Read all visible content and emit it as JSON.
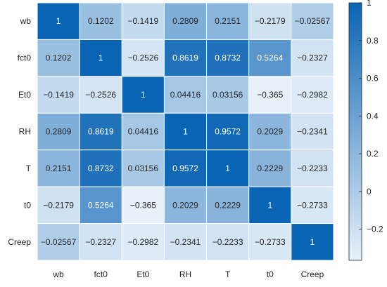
{
  "chart_data": {
    "type": "heatmap",
    "title": "",
    "xlabel": "",
    "ylabel": "",
    "x_labels": [
      "wb",
      "fct0",
      "Et0",
      "RH",
      "T",
      "t0",
      "Creep"
    ],
    "y_labels": [
      "wb",
      "fct0",
      "Et0",
      "RH",
      "T",
      "t0",
      "Creep"
    ],
    "values": [
      [
        1,
        0.1202,
        -0.1419,
        0.2809,
        0.2151,
        -0.2179,
        -0.02567
      ],
      [
        0.1202,
        1,
        -0.2526,
        0.8619,
        0.8732,
        0.5264,
        -0.2327
      ],
      [
        -0.1419,
        -0.2526,
        1,
        0.04416,
        0.03156,
        -0.365,
        -0.2982
      ],
      [
        0.2809,
        0.8619,
        0.04416,
        1,
        0.9572,
        0.2029,
        -0.2341
      ],
      [
        0.2151,
        0.8732,
        0.03156,
        0.9572,
        1,
        0.2229,
        -0.2233
      ],
      [
        -0.2179,
        0.5264,
        -0.365,
        0.2029,
        0.2229,
        1,
        -0.2733
      ],
      [
        -0.02567,
        -0.2327,
        -0.2982,
        -0.2341,
        -0.2233,
        -0.2733,
        1
      ]
    ],
    "cell_labels": [
      [
        "1",
        "0.1202",
        "−0.1419",
        "0.2809",
        "0.2151",
        "−0.2179",
        "−0.02567"
      ],
      [
        "0.1202",
        "1",
        "−0.2526",
        "0.8619",
        "0.8732",
        "0.5264",
        "−0.2327"
      ],
      [
        "−0.1419",
        "−0.2526",
        "1",
        "0.04416",
        "0.03156",
        "−0.365",
        "−0.2982"
      ],
      [
        "0.2809",
        "0.8619",
        "0.04416",
        "1",
        "0.9572",
        "0.2029",
        "−0.2341"
      ],
      [
        "0.2151",
        "0.8732",
        "0.03156",
        "0.9572",
        "1",
        "0.2229",
        "−0.2233"
      ],
      [
        "−0.2179",
        "0.5264",
        "−0.365",
        "0.2029",
        "0.2229",
        "1",
        "−0.2733"
      ],
      [
        "−0.02567",
        "−0.2327",
        "−0.2982",
        "−0.2341",
        "−0.2233",
        "−0.2733",
        "1"
      ]
    ],
    "colorbar": {
      "range": [
        -0.365,
        1
      ],
      "ticks": [
        -0.2,
        0,
        0.2,
        0.4,
        0.6,
        0.8,
        1
      ],
      "tick_labels": [
        "−0.2",
        "0",
        "0.2",
        "0.4",
        "0.6",
        "0.8",
        "1"
      ],
      "low_color": "#e8f1fa",
      "high_color": "#0a64b4"
    },
    "grid": true,
    "legend": "colorbar-right"
  }
}
